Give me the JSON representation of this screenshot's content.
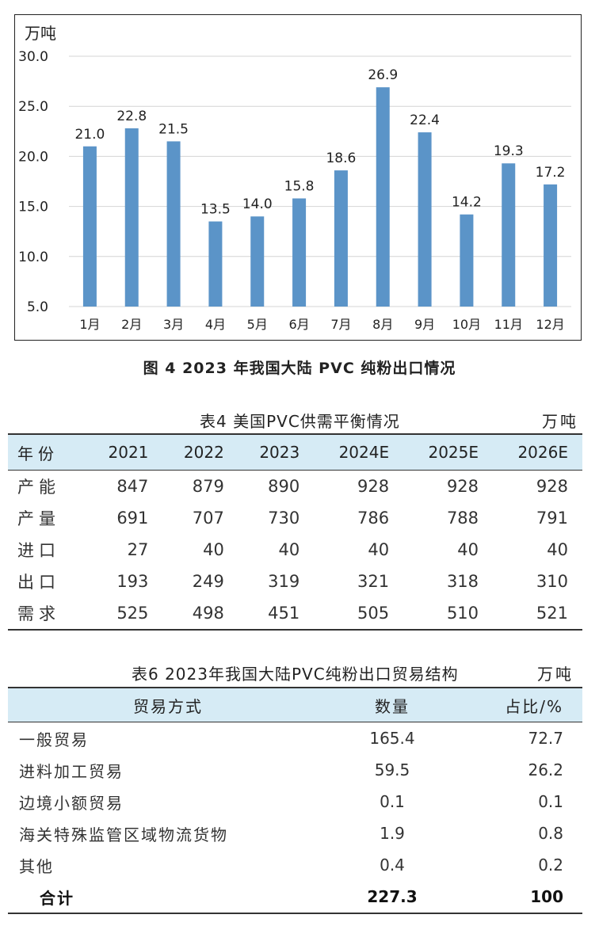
{
  "chart_data": {
    "type": "bar",
    "unit_label": "万吨",
    "categories": [
      "1月",
      "2月",
      "3月",
      "4月",
      "5月",
      "6月",
      "7月",
      "8月",
      "9月",
      "10月",
      "11月",
      "12月"
    ],
    "values": [
      21.0,
      22.8,
      21.5,
      13.5,
      14.0,
      15.8,
      18.6,
      26.9,
      22.4,
      14.2,
      19.3,
      17.2
    ],
    "value_labels": [
      "21.0",
      "22.8",
      "21.5",
      "13.5",
      "14.0",
      "15.8",
      "18.6",
      "26.9",
      "22.4",
      "14.2",
      "19.3",
      "17.2"
    ],
    "yticks": [
      "5.0",
      "10.0",
      "15.0",
      "20.0",
      "25.0",
      "30.0"
    ],
    "ylim": [
      5,
      30
    ],
    "grid": true,
    "bar_color": "#5b94c8",
    "grid_color": "#d4d4d4"
  },
  "figure": {
    "caption": "图 4  2023 年我国大陆 PVC 纯粉出口情况"
  },
  "table4": {
    "title": "表4  美国PVC供需平衡情况",
    "unit": "万吨",
    "header": [
      "年份",
      "2021",
      "2022",
      "2023",
      "2024E",
      "2025E",
      "2026E"
    ],
    "rows": [
      {
        "label": "产能",
        "values": [
          "847",
          "879",
          "890",
          "928",
          "928",
          "928"
        ]
      },
      {
        "label": "产量",
        "values": [
          "691",
          "707",
          "730",
          "786",
          "788",
          "791"
        ]
      },
      {
        "label": "进口",
        "values": [
          "27",
          "40",
          "40",
          "40",
          "40",
          "40"
        ]
      },
      {
        "label": "出口",
        "values": [
          "193",
          "249",
          "319",
          "321",
          "318",
          "310"
        ]
      },
      {
        "label": "需求",
        "values": [
          "525",
          "498",
          "451",
          "505",
          "510",
          "521"
        ]
      }
    ]
  },
  "table6": {
    "title": "表6  2023年我国大陆PVC纯粉出口贸易结构",
    "unit": "万吨",
    "header": [
      "贸易方式",
      "数量",
      "占比/%"
    ],
    "rows": [
      {
        "label": "一般贸易",
        "qty": "165.4",
        "pct": "72.7"
      },
      {
        "label": "进料加工贸易",
        "qty": "59.5",
        "pct": "26.2"
      },
      {
        "label": "边境小额贸易",
        "qty": "0.1",
        "pct": "0.1"
      },
      {
        "label": "海关特殊监管区域物流货物",
        "qty": "1.9",
        "pct": "0.8"
      },
      {
        "label": "其他",
        "qty": "0.4",
        "pct": "0.2"
      }
    ],
    "total": {
      "label": "合计",
      "qty": "227.3",
      "pct": "100"
    }
  },
  "colors": {
    "header_bg": "#d6ebf5",
    "bar": "#5b94c8"
  }
}
